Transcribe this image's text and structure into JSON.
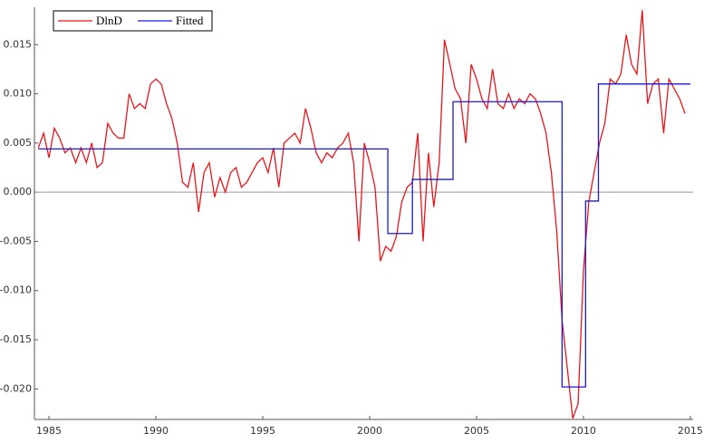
{
  "chart_data": {
    "type": "line",
    "x": [
      1984.5,
      1984.75,
      1985.0,
      1985.25,
      1985.5,
      1985.75,
      1986.0,
      1986.25,
      1986.5,
      1986.75,
      1987.0,
      1987.25,
      1987.5,
      1987.75,
      1988.0,
      1988.25,
      1988.5,
      1988.75,
      1989.0,
      1989.25,
      1989.5,
      1989.75,
      1990.0,
      1990.25,
      1990.5,
      1990.75,
      1991.0,
      1991.25,
      1991.5,
      1991.75,
      1992.0,
      1992.25,
      1992.5,
      1992.75,
      1993.0,
      1993.25,
      1993.5,
      1993.75,
      1994.0,
      1994.25,
      1994.5,
      1994.75,
      1995.0,
      1995.25,
      1995.5,
      1995.75,
      1996.0,
      1996.25,
      1996.5,
      1996.75,
      1997.0,
      1997.25,
      1997.5,
      1997.75,
      1998.0,
      1998.25,
      1998.5,
      1998.75,
      1999.0,
      1999.25,
      1999.5,
      1999.75,
      2000.0,
      2000.25,
      2000.5,
      2000.75,
      2001.0,
      2001.25,
      2001.5,
      2001.75,
      2002.0,
      2002.25,
      2002.5,
      2002.75,
      2003.0,
      2003.25,
      2003.5,
      2003.75,
      2004.0,
      2004.25,
      2004.5,
      2004.75,
      2005.0,
      2005.25,
      2005.5,
      2005.75,
      2006.0,
      2006.25,
      2006.5,
      2006.75,
      2007.0,
      2007.25,
      2007.5,
      2007.75,
      2008.0,
      2008.25,
      2008.5,
      2008.75,
      2009.0,
      2009.25,
      2009.5,
      2009.75,
      2010.0,
      2010.25,
      2010.5,
      2010.75,
      2011.0,
      2011.25,
      2011.5,
      2011.75,
      2012.0,
      2012.25,
      2012.5,
      2012.75,
      2013.0,
      2013.25,
      2013.5,
      2013.75,
      2014.0,
      2014.25,
      2014.5,
      2014.75
    ],
    "series": [
      {
        "name": "DlnD",
        "color": "#e8161b",
        "values": [
          0.0045,
          0.006,
          0.0035,
          0.0065,
          0.0055,
          0.004,
          0.0045,
          0.003,
          0.0045,
          0.003,
          0.005,
          0.0025,
          0.003,
          0.007,
          0.006,
          0.0055,
          0.0055,
          0.01,
          0.0085,
          0.009,
          0.0085,
          0.011,
          0.0115,
          0.011,
          0.009,
          0.0075,
          0.005,
          0.001,
          0.0005,
          0.003,
          -0.002,
          0.002,
          0.003,
          -0.0005,
          0.0015,
          0.0,
          0.002,
          0.0025,
          0.0005,
          0.001,
          0.002,
          0.003,
          0.0035,
          0.002,
          0.0045,
          0.0005,
          0.005,
          0.0055,
          0.006,
          0.005,
          0.0085,
          0.0065,
          0.004,
          0.003,
          0.004,
          0.0035,
          0.0045,
          0.005,
          0.006,
          0.003,
          -0.005,
          0.005,
          0.003,
          0.0005,
          -0.007,
          -0.0055,
          -0.006,
          -0.0045,
          -0.001,
          0.0005,
          0.001,
          0.006,
          -0.005,
          0.004,
          -0.0015,
          0.003,
          0.0155,
          0.013,
          0.0105,
          0.0095,
          0.005,
          0.013,
          0.0115,
          0.0095,
          0.0085,
          0.0125,
          0.009,
          0.0085,
          0.01,
          0.0085,
          0.0095,
          0.009,
          0.01,
          0.0095,
          0.008,
          0.006,
          0.002,
          -0.004,
          -0.013,
          -0.018,
          -0.023,
          -0.0215,
          -0.008,
          -0.001,
          0.002,
          0.005,
          0.007,
          0.0115,
          0.011,
          0.012,
          0.016,
          0.013,
          0.012,
          0.0185,
          0.009,
          0.011,
          0.0115,
          0.006,
          0.0115,
          0.0105,
          0.0095,
          0.008
        ]
      },
      {
        "name": "Fitted",
        "color": "#1a1adc",
        "x": [
          1984.5,
          2000.85,
          2000.85,
          2002.0,
          2002.0,
          2003.9,
          2003.9,
          2009.0,
          2009.0,
          2010.1,
          2010.1,
          2010.7,
          2010.7,
          2015.0
        ],
        "values": [
          0.0044,
          0.0044,
          -0.0042,
          -0.0042,
          0.0013,
          0.0013,
          0.0092,
          0.0092,
          -0.0198,
          -0.0198,
          -0.0009,
          -0.0009,
          0.011,
          0.011
        ]
      }
    ],
    "xlim": [
      1984.32,
      2015.13
    ],
    "xticks": [
      1985,
      1990,
      1995,
      2000,
      2005,
      2010,
      2015
    ],
    "ylim": [
      -0.0231,
      0.0188
    ],
    "yticks": [
      0.015,
      {
        "value": 0.01,
        "label": "0.010"
      },
      0.005,
      {
        "value": 0,
        "label": "0.000"
      },
      -0.005,
      {
        "value": -0.01,
        "label": "-0.010"
      },
      -0.015,
      {
        "value": -0.02,
        "label": "-0.020"
      }
    ],
    "zero_line": true,
    "legend": "top-left"
  }
}
